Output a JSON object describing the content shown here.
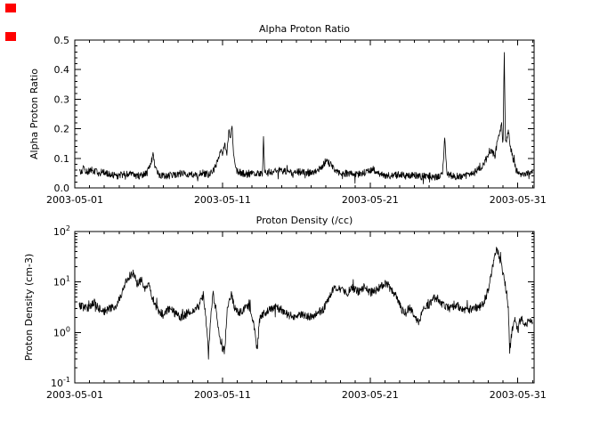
{
  "colors": {
    "background": "#ffffff",
    "axis": "#000000",
    "trace": "#000000",
    "marker_red": "#ff0000"
  },
  "decorations": {
    "red_square_count": 2
  },
  "noise_seed": 20030501,
  "chart_data": [
    {
      "type": "line",
      "title": "Alpha Proton Ratio",
      "xlabel": "",
      "ylabel": "Alpha Proton Ratio",
      "x_unit": "days since 2003-05-01",
      "xlim_days": [
        0,
        31.1
      ],
      "ylim": [
        0,
        0.5
      ],
      "yscale": "linear",
      "grid": false,
      "x_major_days": [
        0,
        10,
        20,
        30
      ],
      "x_tick_labels": [
        "2003-05-01",
        "2003-05-11",
        "2003-05-21",
        "2003-05-31"
      ],
      "y_major_values": [
        0,
        0.1,
        0.2,
        0.3,
        0.4,
        0.5
      ],
      "y_tick_labels": [
        "0.0",
        "0.1",
        "0.2",
        "0.3",
        "0.4",
        "0.5"
      ],
      "y_minor_step": 0.02,
      "series": [
        {
          "name": "alpha proton ratio",
          "noise_band": 0.012,
          "keypoints": [
            [
              0.3,
              0.05
            ],
            [
              0.6,
              0.065
            ],
            [
              0.9,
              0.055
            ],
            [
              1.2,
              0.06
            ],
            [
              1.6,
              0.05
            ],
            [
              2.0,
              0.055
            ],
            [
              2.4,
              0.045
            ],
            [
              2.8,
              0.04
            ],
            [
              3.2,
              0.045
            ],
            [
              3.6,
              0.05
            ],
            [
              4.0,
              0.042
            ],
            [
              4.4,
              0.04
            ],
            [
              4.9,
              0.05
            ],
            [
              5.15,
              0.08
            ],
            [
              5.3,
              0.12
            ],
            [
              5.45,
              0.07
            ],
            [
              5.7,
              0.045
            ],
            [
              6.2,
              0.04
            ],
            [
              6.7,
              0.045
            ],
            [
              7.2,
              0.05
            ],
            [
              7.7,
              0.045
            ],
            [
              8.2,
              0.042
            ],
            [
              8.7,
              0.05
            ],
            [
              9.1,
              0.045
            ],
            [
              9.4,
              0.06
            ],
            [
              9.65,
              0.09
            ],
            [
              9.85,
              0.13
            ],
            [
              10.0,
              0.11
            ],
            [
              10.15,
              0.15
            ],
            [
              10.3,
              0.12
            ],
            [
              10.45,
              0.2
            ],
            [
              10.55,
              0.17
            ],
            [
              10.65,
              0.21
            ],
            [
              10.75,
              0.12
            ],
            [
              10.9,
              0.06
            ],
            [
              11.3,
              0.05
            ],
            [
              11.8,
              0.045
            ],
            [
              12.3,
              0.05
            ],
            [
              12.7,
              0.05
            ],
            [
              12.78,
              0.17
            ],
            [
              12.86,
              0.05
            ],
            [
              13.3,
              0.055
            ],
            [
              13.8,
              0.06
            ],
            [
              14.3,
              0.055
            ],
            [
              14.8,
              0.05
            ],
            [
              15.3,
              0.055
            ],
            [
              15.8,
              0.05
            ],
            [
              16.3,
              0.055
            ],
            [
              16.7,
              0.07
            ],
            [
              17.0,
              0.09
            ],
            [
              17.3,
              0.08
            ],
            [
              17.6,
              0.06
            ],
            [
              18.0,
              0.05
            ],
            [
              18.5,
              0.048
            ],
            [
              19.0,
              0.045
            ],
            [
              19.5,
              0.05
            ],
            [
              19.9,
              0.055
            ],
            [
              20.2,
              0.065
            ],
            [
              20.5,
              0.05
            ],
            [
              21.0,
              0.042
            ],
            [
              21.5,
              0.04
            ],
            [
              22.0,
              0.045
            ],
            [
              22.5,
              0.04
            ],
            [
              23.0,
              0.042
            ],
            [
              23.5,
              0.038
            ],
            [
              24.0,
              0.04
            ],
            [
              24.5,
              0.035
            ],
            [
              24.9,
              0.045
            ],
            [
              25.05,
              0.17
            ],
            [
              25.2,
              0.05
            ],
            [
              25.6,
              0.04
            ],
            [
              26.0,
              0.038
            ],
            [
              26.5,
              0.042
            ],
            [
              27.0,
              0.05
            ],
            [
              27.5,
              0.07
            ],
            [
              27.9,
              0.1
            ],
            [
              28.2,
              0.13
            ],
            [
              28.45,
              0.11
            ],
            [
              28.7,
              0.18
            ],
            [
              28.9,
              0.21
            ],
            [
              29.0,
              0.16
            ],
            [
              29.08,
              0.46
            ],
            [
              29.16,
              0.15
            ],
            [
              29.35,
              0.19
            ],
            [
              29.5,
              0.14
            ],
            [
              29.7,
              0.09
            ],
            [
              29.9,
              0.06
            ],
            [
              30.2,
              0.045
            ],
            [
              30.6,
              0.05
            ],
            [
              31.0,
              0.05
            ]
          ]
        }
      ]
    },
    {
      "type": "line",
      "title": "Proton Density (/cc)",
      "xlabel": "",
      "ylabel": "Proton Density (cm-3)",
      "x_unit": "days since 2003-05-01",
      "xlim_days": [
        0,
        31.1
      ],
      "ylim": [
        0.1,
        100
      ],
      "yscale": "log",
      "grid": false,
      "x_major_days": [
        0,
        10,
        20,
        30
      ],
      "x_tick_labels": [
        "2003-05-01",
        "2003-05-11",
        "2003-05-21",
        "2003-05-31"
      ],
      "y_tick_base": "10",
      "y_tick_exponents": [
        "-1",
        "0",
        "1",
        "2"
      ],
      "series": [
        {
          "name": "proton density",
          "noise_band": 0.08,
          "keypoints": [
            [
              0.3,
              3.5
            ],
            [
              0.7,
              3.0
            ],
            [
              1.0,
              3.2
            ],
            [
              1.3,
              4.0
            ],
            [
              1.6,
              3.0
            ],
            [
              2.0,
              2.6
            ],
            [
              2.4,
              3.0
            ],
            [
              2.8,
              3.4
            ],
            [
              3.1,
              5.0
            ],
            [
              3.4,
              9.0
            ],
            [
              3.7,
              13.0
            ],
            [
              4.0,
              15.0
            ],
            [
              4.2,
              9.0
            ],
            [
              4.5,
              11.0
            ],
            [
              4.8,
              7.0
            ],
            [
              5.0,
              9.0
            ],
            [
              5.3,
              4.5
            ],
            [
              5.6,
              2.8
            ],
            [
              6.0,
              2.2
            ],
            [
              6.4,
              3.0
            ],
            [
              6.8,
              2.4
            ],
            [
              7.2,
              2.0
            ],
            [
              7.6,
              2.4
            ],
            [
              8.0,
              2.8
            ],
            [
              8.4,
              3.2
            ],
            [
              8.7,
              5.5
            ],
            [
              8.95,
              1.2
            ],
            [
              9.05,
              0.33
            ],
            [
              9.2,
              1.8
            ],
            [
              9.35,
              6.0
            ],
            [
              9.55,
              3.0
            ],
            [
              9.8,
              0.9
            ],
            [
              10.0,
              0.5
            ],
            [
              10.15,
              0.42
            ],
            [
              10.35,
              3.5
            ],
            [
              10.6,
              5.5
            ],
            [
              10.85,
              3.0
            ],
            [
              11.2,
              2.4
            ],
            [
              11.6,
              3.4
            ],
            [
              11.9,
              3.0
            ],
            [
              12.2,
              1.0
            ],
            [
              12.35,
              0.42
            ],
            [
              12.5,
              1.8
            ],
            [
              12.8,
              2.4
            ],
            [
              13.2,
              2.8
            ],
            [
              13.6,
              3.2
            ],
            [
              14.0,
              2.8
            ],
            [
              14.4,
              2.3
            ],
            [
              14.8,
              2.0
            ],
            [
              15.2,
              2.4
            ],
            [
              15.6,
              2.1
            ],
            [
              16.0,
              2.0
            ],
            [
              16.4,
              2.4
            ],
            [
              16.8,
              2.8
            ],
            [
              17.1,
              4.0
            ],
            [
              17.4,
              6.5
            ],
            [
              17.7,
              8.0
            ],
            [
              18.0,
              7.0
            ],
            [
              18.4,
              6.0
            ],
            [
              18.8,
              7.5
            ],
            [
              19.2,
              6.5
            ],
            [
              19.6,
              8.0
            ],
            [
              20.0,
              6.0
            ],
            [
              20.4,
              7.0
            ],
            [
              20.8,
              8.5
            ],
            [
              21.1,
              9.5
            ],
            [
              21.4,
              7.0
            ],
            [
              21.8,
              5.0
            ],
            [
              22.1,
              3.0
            ],
            [
              22.4,
              2.4
            ],
            [
              22.7,
              3.2
            ],
            [
              23.0,
              2.0
            ],
            [
              23.3,
              1.6
            ],
            [
              23.6,
              2.8
            ],
            [
              24.0,
              3.6
            ],
            [
              24.3,
              5.0
            ],
            [
              24.6,
              4.0
            ],
            [
              25.0,
              3.4
            ],
            [
              25.4,
              3.0
            ],
            [
              25.8,
              3.5
            ],
            [
              26.2,
              3.0
            ],
            [
              26.6,
              2.8
            ],
            [
              27.0,
              3.0
            ],
            [
              27.4,
              3.2
            ],
            [
              27.7,
              4.0
            ],
            [
              28.0,
              7.0
            ],
            [
              28.3,
              20.0
            ],
            [
              28.55,
              50.0
            ],
            [
              28.75,
              30.0
            ],
            [
              28.95,
              18.0
            ],
            [
              29.1,
              10.0
            ],
            [
              29.25,
              6.0
            ],
            [
              29.35,
              3.0
            ],
            [
              29.45,
              0.45
            ],
            [
              29.6,
              1.0
            ],
            [
              29.8,
              2.0
            ],
            [
              30.0,
              1.1
            ],
            [
              30.2,
              2.0
            ],
            [
              30.5,
              1.3
            ],
            [
              30.8,
              1.8
            ],
            [
              31.0,
              1.6
            ]
          ]
        }
      ]
    }
  ]
}
